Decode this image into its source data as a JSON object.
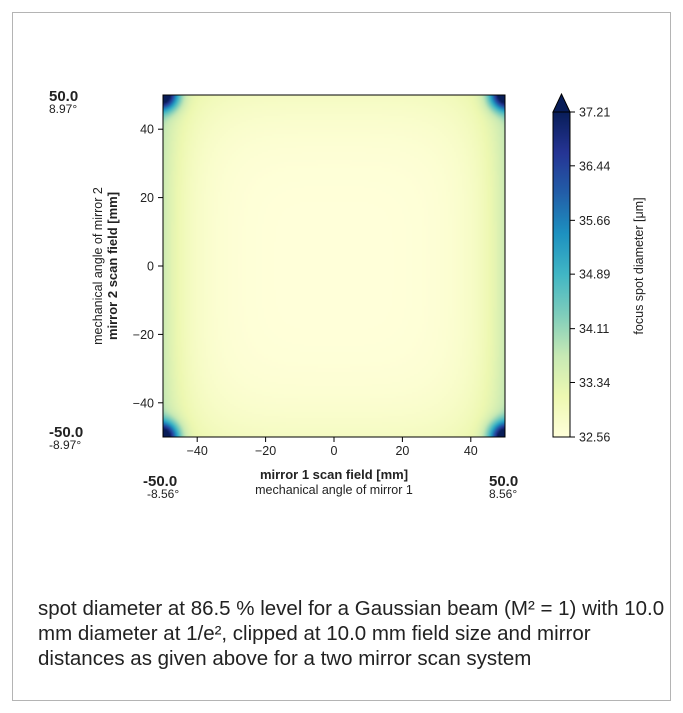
{
  "chart_data": {
    "type": "heatmap",
    "title": "",
    "xlabel": "mirror 1 scan field [mm]",
    "xlabel_secondary": "mechanical angle of mirror 1",
    "ylabel": "mirror 2 scan field [mm]",
    "ylabel_secondary": "mechanical angle of mirror 2",
    "xlim": [
      -50,
      50
    ],
    "ylim": [
      -50,
      50
    ],
    "x_ticks": [
      -40,
      -20,
      0,
      20,
      40
    ],
    "y_ticks": [
      -40,
      -20,
      0,
      20,
      40
    ],
    "x_tick_labels": [
      "−40",
      "−20",
      "0",
      "20",
      "40"
    ],
    "y_tick_labels": [
      "−40",
      "−20",
      "0",
      "20",
      "40"
    ],
    "x_extent_labels": {
      "min_field": "-50.0",
      "min_angle": "-8.56°",
      "max_field": "50.0",
      "max_angle": "8.56°"
    },
    "y_extent_labels": {
      "min_field": "-50.0",
      "min_angle": "-8.97°",
      "max_field": "50.0",
      "max_angle": "8.97°"
    },
    "colorbar": {
      "label": "focus spot diameter [μm]",
      "min": 32.56,
      "max": 37.21,
      "ticks": [
        32.56,
        33.34,
        34.11,
        34.89,
        35.66,
        36.44,
        37.21
      ],
      "tick_labels": [
        "32.56",
        "33.34",
        "34.11",
        "34.89",
        "35.66",
        "36.44",
        "37.21"
      ],
      "extend": "max",
      "colormap": [
        "#ffffd9",
        "#edf8b1",
        "#c7e9b4",
        "#7fcdbb",
        "#41b6c4",
        "#1d91c0",
        "#225ea8",
        "#253494",
        "#081d58"
      ]
    },
    "field": {
      "center_value": 32.56,
      "edge_mid_value": 33.6,
      "corner_value": 37.21
    }
  },
  "caption": "spot diameter at 86.5 % level for a Gaussian beam (M² = 1) with 10.0 mm diameter at 1/e², clipped at 10.0  mm field size and mirror distances as given above for a two mirror scan system"
}
